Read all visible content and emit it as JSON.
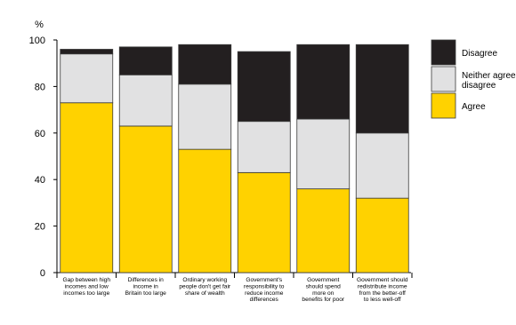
{
  "chart_data": {
    "type": "bar",
    "stacked": true,
    "ylabel": "%",
    "ylim": [
      0,
      100
    ],
    "yticks": [
      0,
      20,
      40,
      60,
      80,
      100
    ],
    "grid": false,
    "legend_position": "right",
    "categories": [
      [
        "Gap between high",
        "incomes and low",
        "incomes too large"
      ],
      [
        "Differences in",
        "income in",
        "Britain too large"
      ],
      [
        "Ordinary working",
        "people don't get fair",
        "share of wealth"
      ],
      [
        "Government's",
        "responsibility to",
        "reduce income",
        "differences"
      ],
      [
        "Government",
        "should spend",
        "more on",
        "benefits for poor"
      ],
      [
        "Government should",
        "redistribute income",
        "from the better-off",
        "to less well-off"
      ]
    ],
    "series": [
      {
        "name": "Agree",
        "color": "#ffd200",
        "values": [
          73,
          63,
          53,
          43,
          36,
          32
        ]
      },
      {
        "name": "Neither agree nor disagree",
        "color": "#e1e1e2",
        "values": [
          21,
          22,
          28,
          22,
          30,
          28
        ]
      },
      {
        "name": "Disagree",
        "color": "#231f20",
        "values": [
          2,
          12,
          17,
          30,
          32,
          38
        ]
      }
    ],
    "legend": [
      {
        "series": 2,
        "lines": [
          "Disagree"
        ]
      },
      {
        "series": 1,
        "lines": [
          "Neither agree nor",
          "disagree"
        ]
      },
      {
        "series": 0,
        "lines": [
          "Agree"
        ]
      }
    ]
  }
}
